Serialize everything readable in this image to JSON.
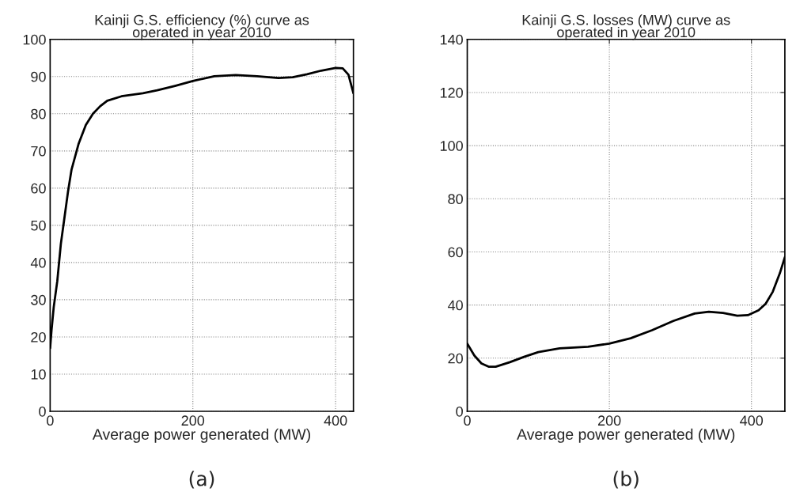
{
  "chart_data": [
    {
      "type": "line",
      "title": "Kainji G.S. efficiency (%) curve as\noperated in year 2010",
      "xlabel": "Average power generated (MW)",
      "annotations": [
        "(a)"
      ],
      "x": [
        0,
        2,
        5,
        10,
        15,
        20,
        25,
        30,
        40,
        50,
        60,
        70,
        80,
        100,
        130,
        150,
        175,
        200,
        230,
        260,
        290,
        320,
        340,
        360,
        380,
        400,
        410,
        418,
        425
      ],
      "series": [
        {
          "color": "#000000",
          "values": [
            17,
            22,
            28,
            35,
            45,
            52,
            59,
            65,
            72,
            77,
            80,
            82,
            83.5,
            84.7,
            85.5,
            86.3,
            87.5,
            88.8,
            90.1,
            90.4,
            90.1,
            89.6,
            89.8,
            90.6,
            91.6,
            92.3,
            92.2,
            90.5,
            85.5
          ]
        }
      ],
      "xlim": [
        0,
        425
      ],
      "xticks": [
        0,
        200,
        400
      ],
      "ylim": [
        0,
        100
      ],
      "yticks": [
        0,
        10,
        20,
        30,
        40,
        50,
        60,
        70,
        80,
        90,
        100
      ],
      "grid": true,
      "line_style": "solid",
      "marker": "none"
    },
    {
      "type": "line",
      "title": "Kainji G.S. losses (MW) curve as\noperated in year 2010",
      "xlabel": "Average power generated (MW)",
      "annotations": [
        "(b)"
      ],
      "x": [
        0,
        10,
        20,
        30,
        40,
        60,
        80,
        100,
        130,
        170,
        200,
        230,
        260,
        290,
        320,
        340,
        360,
        380,
        395,
        410,
        420,
        430,
        440,
        447
      ],
      "series": [
        {
          "color": "#000000",
          "values": [
            25.5,
            21,
            18,
            16.8,
            16.8,
            18.5,
            20.5,
            22.3,
            23.7,
            24.3,
            25.5,
            27.5,
            30.5,
            34,
            36.8,
            37.5,
            37,
            36,
            36.2,
            38,
            40.5,
            45,
            52,
            58
          ]
        }
      ],
      "xlim": [
        0,
        447
      ],
      "xticks": [
        0,
        200,
        400
      ],
      "ylim": [
        0,
        140
      ],
      "yticks": [
        0,
        20,
        40,
        60,
        80,
        100,
        120,
        140
      ],
      "grid": true,
      "line_style": "solid",
      "marker": "none"
    }
  ]
}
